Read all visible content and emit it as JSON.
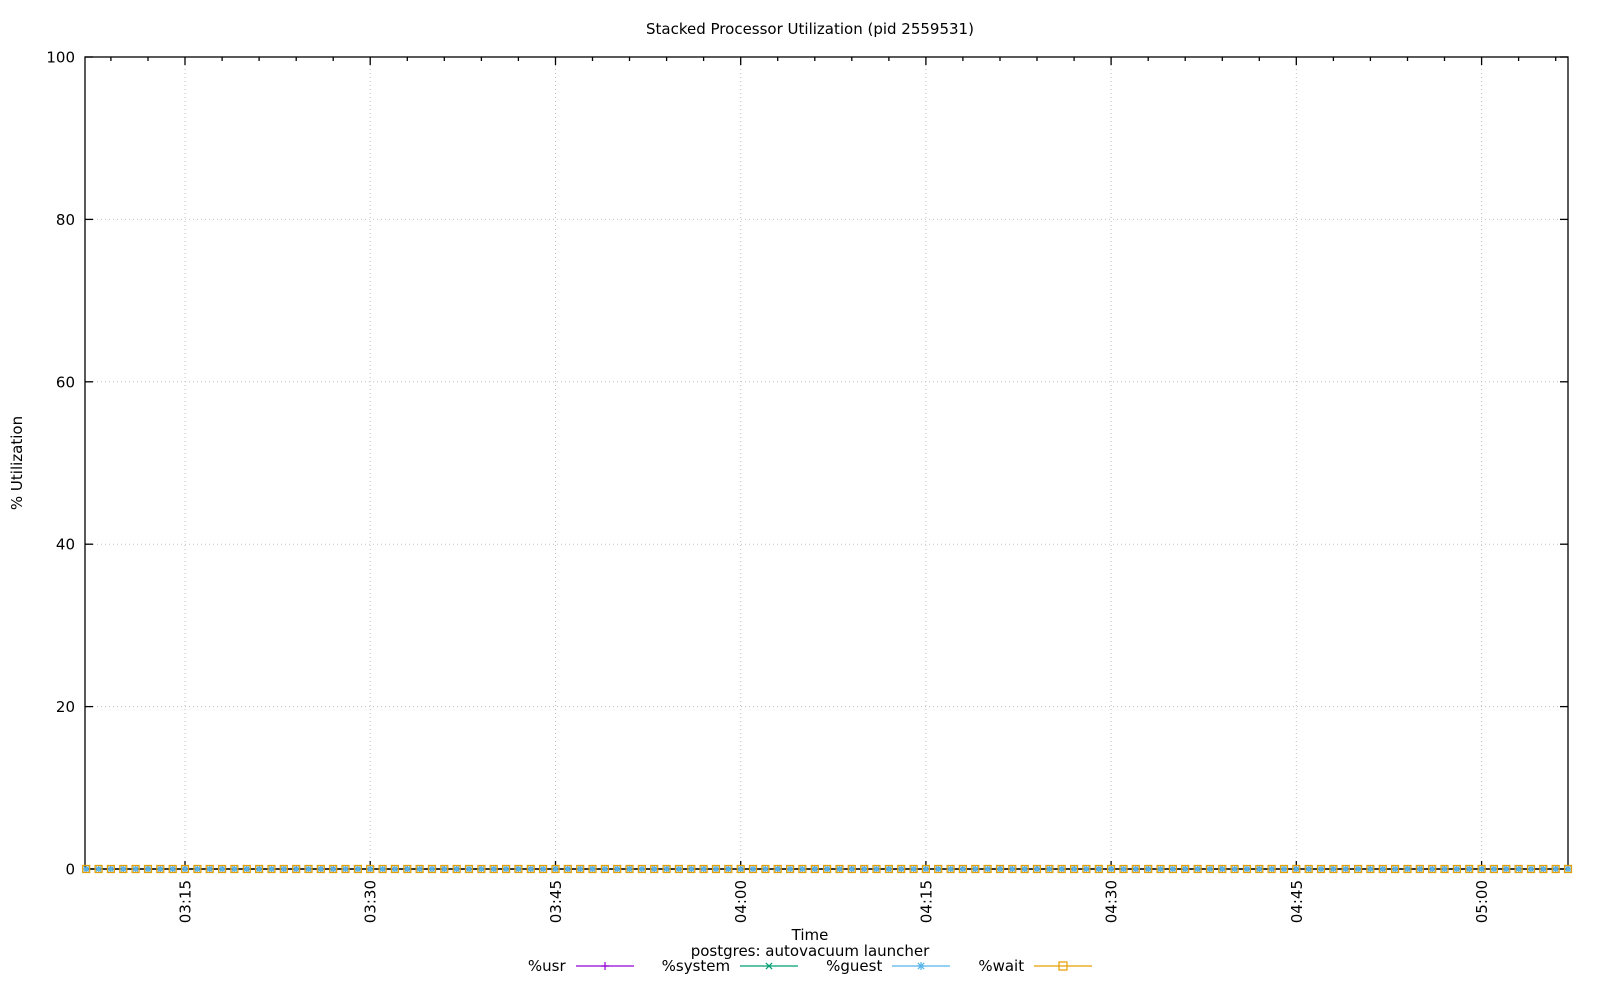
{
  "chart": {
    "title": "Stacked Processor Utilization (pid 2559531)"
  },
  "chart_data": {
    "type": "line",
    "title": "Stacked Processor Utilization (pid 2559531)",
    "xlabel": "Time",
    "ylabel": "% Utilization",
    "legend_title": "postgres: autovacuum launcher",
    "legend_position": "below-center",
    "background_color": "#ffffff",
    "border_color": "#000000",
    "grid": "dotted",
    "grid_color": "#c0c0c0",
    "ylim": [
      0,
      100
    ],
    "yticks": [
      0,
      20,
      40,
      60,
      80,
      100
    ],
    "xlim": [
      "03:06:54",
      "05:07:00"
    ],
    "xticks": [
      "03:15",
      "03:30",
      "03:45",
      "04:00",
      "04:15",
      "04:30",
      "04:45",
      "05:00"
    ],
    "x_minor_step_minutes": 3,
    "x_major_step_minutes": 15,
    "samples": {
      "start": "03:07:00",
      "end": "05:07:00",
      "interval_seconds": 60
    },
    "series": [
      {
        "name": "%usr",
        "color": "#9400d3",
        "marker": "plus",
        "value_constant": 0
      },
      {
        "name": "%system",
        "color": "#009e73",
        "marker": "cross",
        "value_constant": 0
      },
      {
        "name": "%guest",
        "color": "#56b4e9",
        "marker": "asterisk",
        "value_constant": 0
      },
      {
        "name": "%wait",
        "color": "#e69f00",
        "marker": "square-open",
        "value_constant": 0
      }
    ]
  }
}
